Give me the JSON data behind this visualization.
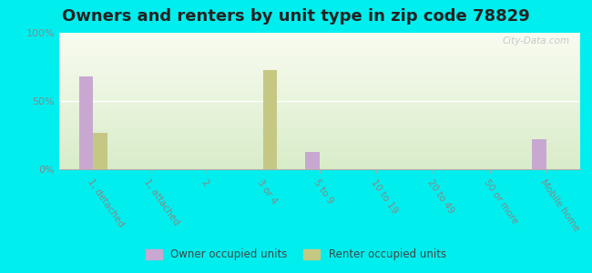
{
  "title": "Owners and renters by unit type in zip code 78829",
  "categories": [
    "1, detached",
    "1, attached",
    "2",
    "3 or 4",
    "5 to 9",
    "10 to 19",
    "20 to 49",
    "50 or more",
    "Mobile home"
  ],
  "owner_values": [
    68,
    0,
    0,
    0,
    13,
    0,
    0,
    0,
    22
  ],
  "renter_values": [
    27,
    0,
    0,
    73,
    0,
    0,
    0,
    0,
    0
  ],
  "owner_color": "#c8a8d0",
  "renter_color": "#c5c882",
  "background_color": "#00eeee",
  "title_fontsize": 13,
  "ylabel_ticks": [
    "0%",
    "50%",
    "100%"
  ],
  "yticks": [
    0,
    50,
    100
  ],
  "ylim": [
    0,
    100
  ],
  "bar_width": 0.25,
  "watermark": "City-Data.com",
  "legend_owner": "Owner occupied units",
  "legend_renter": "Renter occupied units",
  "grad_top": "#f8fbf0",
  "grad_bottom": "#d8ecc8",
  "grad_right": "#f0f8e8",
  "tick_color": "#aaaaaa",
  "label_color": "#888888"
}
